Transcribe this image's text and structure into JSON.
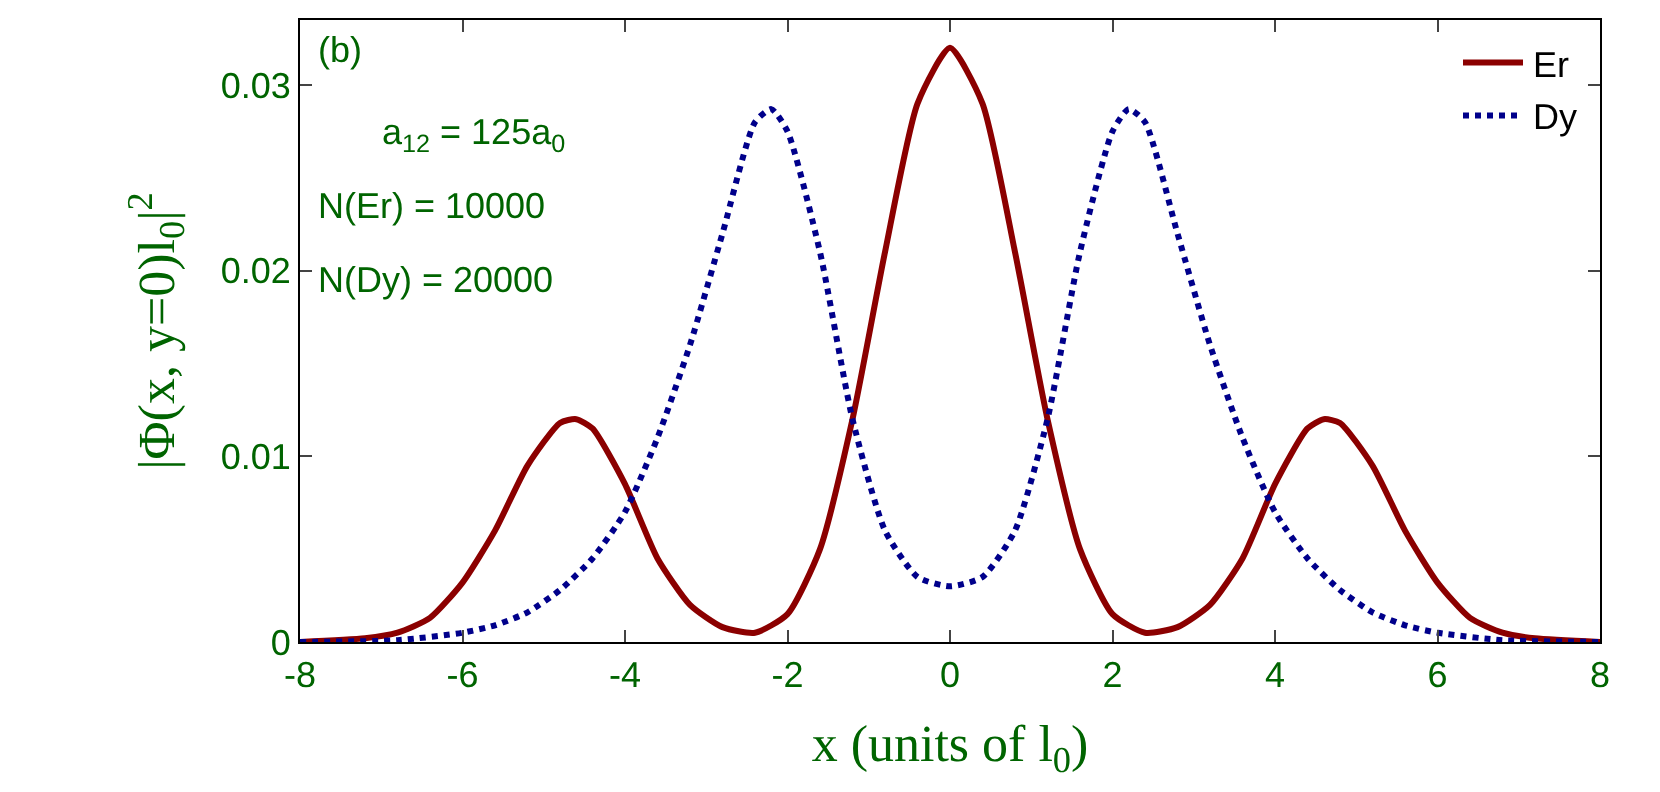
{
  "chart_data": {
    "type": "line",
    "xlabel": "x (units of l$_{0}$)",
    "ylabel": "|Φ(x, y=0)l$_{0}$|$^{2}$",
    "annotations": [
      "(b)",
      "a$_{12}$ = 125a$_{0}$",
      "N(Er) = 10000",
      "N(Dy) = 20000"
    ],
    "xlim": [
      -8,
      8
    ],
    "xticks": [
      -8,
      -6,
      -4,
      -2,
      0,
      2,
      4,
      6,
      8
    ],
    "ylim": [
      0,
      0.0335
    ],
    "yticks": [
      0,
      0.01,
      0.02,
      0.03
    ],
    "legend": "top right",
    "series": [
      {
        "name": "Er",
        "color": "#8b0000",
        "line_style": "solid",
        "x": [
          -8,
          -7.2,
          -6.8,
          -6.4,
          -6.0,
          -5.6,
          -5.2,
          -4.8,
          -4.6,
          -4.4,
          -4.0,
          -3.6,
          -3.2,
          -2.8,
          -2.4,
          -2.0,
          -1.6,
          -1.2,
          -0.8,
          -0.4,
          0,
          0.4,
          0.8,
          1.2,
          1.6,
          2.0,
          2.4,
          2.8,
          3.2,
          3.6,
          4.0,
          4.4,
          4.6,
          4.8,
          5.2,
          5.6,
          6.0,
          6.4,
          6.8,
          7.2,
          8
        ],
        "values": [
          0,
          0.0002,
          0.0005,
          0.0013,
          0.0032,
          0.006,
          0.0095,
          0.0118,
          0.012,
          0.0115,
          0.0085,
          0.0045,
          0.002,
          0.0008,
          0.0005,
          0.0015,
          0.005,
          0.012,
          0.021,
          0.029,
          0.032,
          0.029,
          0.021,
          0.012,
          0.005,
          0.0015,
          0.0005,
          0.0008,
          0.002,
          0.0045,
          0.0085,
          0.0115,
          0.012,
          0.0118,
          0.0095,
          0.006,
          0.0032,
          0.0013,
          0.0005,
          0.0002,
          0
        ]
      },
      {
        "name": "Dy",
        "color": "#00008b",
        "line_style": "dotted",
        "x": [
          -8,
          -6.8,
          -6.0,
          -5.6,
          -5.2,
          -4.8,
          -4.4,
          -4.0,
          -3.6,
          -3.2,
          -2.8,
          -2.4,
          -2.2,
          -2.0,
          -1.6,
          -1.2,
          -0.8,
          -0.4,
          0,
          0.4,
          0.8,
          1.2,
          1.6,
          2.0,
          2.2,
          2.4,
          2.8,
          3.2,
          3.6,
          4.0,
          4.4,
          4.8,
          5.2,
          5.6,
          6.0,
          6.8,
          8
        ],
        "values": [
          0,
          0.0001,
          0.0005,
          0.0009,
          0.0016,
          0.0028,
          0.0045,
          0.007,
          0.011,
          0.016,
          0.022,
          0.028,
          0.0287,
          0.0275,
          0.021,
          0.012,
          0.006,
          0.0035,
          0.003,
          0.0035,
          0.006,
          0.012,
          0.021,
          0.0275,
          0.0287,
          0.028,
          0.022,
          0.016,
          0.011,
          0.007,
          0.0045,
          0.0028,
          0.0016,
          0.0009,
          0.0005,
          0.0001,
          0
        ]
      }
    ]
  }
}
